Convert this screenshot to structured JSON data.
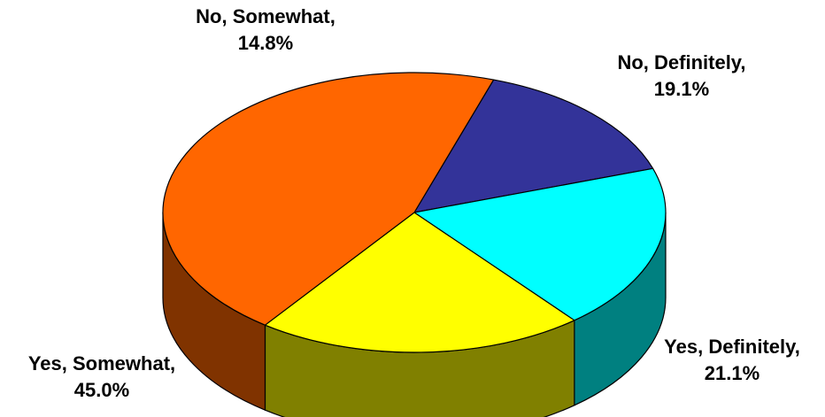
{
  "chart_data": {
    "type": "pie",
    "style": "3d",
    "slices": [
      {
        "name": "No, Somewhat,",
        "value": 14.8,
        "label_value": "14.8%",
        "color": "#333399",
        "side_color": "#1f1f5c"
      },
      {
        "name": "No, Definitely,",
        "value": 19.1,
        "label_value": "19.1%",
        "color": "#00ffff",
        "side_color": "#008080"
      },
      {
        "name": "Yes, Definitely,",
        "value": 21.1,
        "label_value": "21.1%",
        "color": "#ffff00",
        "side_color": "#808000"
      },
      {
        "name": "Yes, Somewhat,",
        "value": 45.0,
        "label_value": "45.0%",
        "color": "#ff6600",
        "side_color": "#803300"
      }
    ]
  }
}
